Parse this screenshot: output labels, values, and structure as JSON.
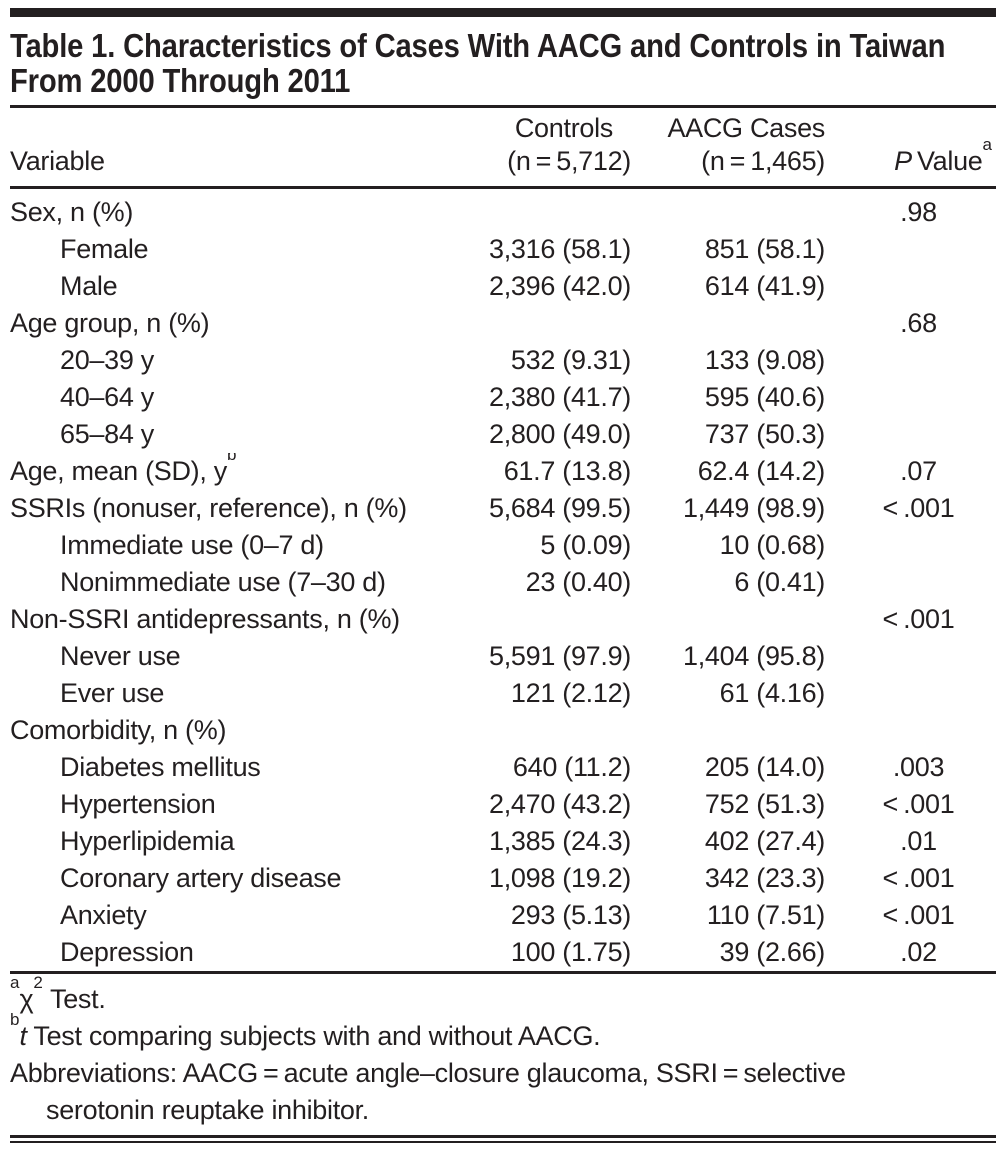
{
  "colors": {
    "ink": "#231f20",
    "background": "#ffffff",
    "rule": "#231f20"
  },
  "table": {
    "title": "Table 1. Characteristics of Cases With AACG and Controls in Taiwan From 2000 Through 2011",
    "header": {
      "variable": "Variable",
      "controls": {
        "line1": "Controls",
        "line2": "(n = 5,712)"
      },
      "cases": {
        "line1": "AACG Cases",
        "line2": "(n = 1,465)"
      },
      "pvalue": {
        "italic": "P",
        "text": " Value",
        "sup": "a"
      }
    },
    "rows": [
      {
        "label": "Sex, n (%)",
        "indent": false,
        "controls": "",
        "cases": "",
        "p": ".98"
      },
      {
        "label": "Female",
        "indent": true,
        "controls": "3,316 (58.1)",
        "cases": "851 (58.1)",
        "p": ""
      },
      {
        "label": "Male",
        "indent": true,
        "controls": "2,396 (42.0)",
        "cases": "614 (41.9)",
        "p": ""
      },
      {
        "label": "Age group, n (%)",
        "indent": false,
        "controls": "",
        "cases": "",
        "p": ".68"
      },
      {
        "label": "20–39 y",
        "indent": true,
        "controls": "532 (9.31)",
        "cases": "133 (9.08)",
        "p": ""
      },
      {
        "label": "40–64 y",
        "indent": true,
        "controls": "2,380 (41.7)",
        "cases": "595 (40.6)",
        "p": ""
      },
      {
        "label": "65–84 y",
        "indent": true,
        "controls": "2,800 (49.0)",
        "cases": "737 (50.3)",
        "p": ""
      },
      {
        "label": "Age, mean (SD), y",
        "label_sup": "b",
        "indent": false,
        "controls": "61.7 (13.8)",
        "cases": "62.4 (14.2)",
        "p": ".07"
      },
      {
        "label": "SSRIs (nonuser, reference), n (%)",
        "indent": false,
        "controls": "5,684 (99.5)",
        "cases": "1,449 (98.9)",
        "p": "< .001"
      },
      {
        "label": "Immediate use (0–7 d)",
        "indent": true,
        "controls": "5 (0.09)",
        "cases": "10 (0.68)",
        "p": ""
      },
      {
        "label": "Nonimmediate use (7–30 d)",
        "indent": true,
        "controls": "23 (0.40)",
        "cases": "6 (0.41)",
        "p": ""
      },
      {
        "label": "Non-SSRI antidepressants, n (%)",
        "indent": false,
        "controls": "",
        "cases": "",
        "p": "< .001"
      },
      {
        "label": "Never use",
        "indent": true,
        "controls": "5,591 (97.9)",
        "cases": "1,404 (95.8)",
        "p": ""
      },
      {
        "label": "Ever use",
        "indent": true,
        "controls": "121 (2.12)",
        "cases": "61 (4.16)",
        "p": ""
      },
      {
        "label": "Comorbidity, n (%)",
        "indent": false,
        "controls": "",
        "cases": "",
        "p": ""
      },
      {
        "label": "Diabetes mellitus",
        "indent": true,
        "controls": "640 (11.2)",
        "cases": "205 (14.0)",
        "p": ".003"
      },
      {
        "label": "Hypertension",
        "indent": true,
        "controls": "2,470 (43.2)",
        "cases": "752 (51.3)",
        "p": "< .001"
      },
      {
        "label": "Hyperlipidemia",
        "indent": true,
        "controls": "1,385 (24.3)",
        "cases": "402 (27.4)",
        "p": ".01"
      },
      {
        "label": "Coronary artery disease",
        "indent": true,
        "controls": "1,098 (19.2)",
        "cases": "342 (23.3)",
        "p": "< .001"
      },
      {
        "label": "Anxiety",
        "indent": true,
        "controls": "293 (5.13)",
        "cases": "110 (7.51)",
        "p": "< .001"
      },
      {
        "label": "Depression",
        "indent": true,
        "controls": "100 (1.75)",
        "cases": "39 (2.66)",
        "p": ".02"
      }
    ],
    "footnotes": {
      "a": {
        "marker": "a",
        "chi": "χ",
        "chi_sup": "2",
        "text": " Test."
      },
      "b": {
        "marker": "b",
        "italic": "t",
        "text": " Test comparing subjects with and without AACG."
      },
      "abbreviations_line1": "Abbreviations: AACG = acute angle–closure glaucoma, SSRI = selective",
      "abbreviations_line2": "serotonin reuptake inhibitor."
    }
  }
}
